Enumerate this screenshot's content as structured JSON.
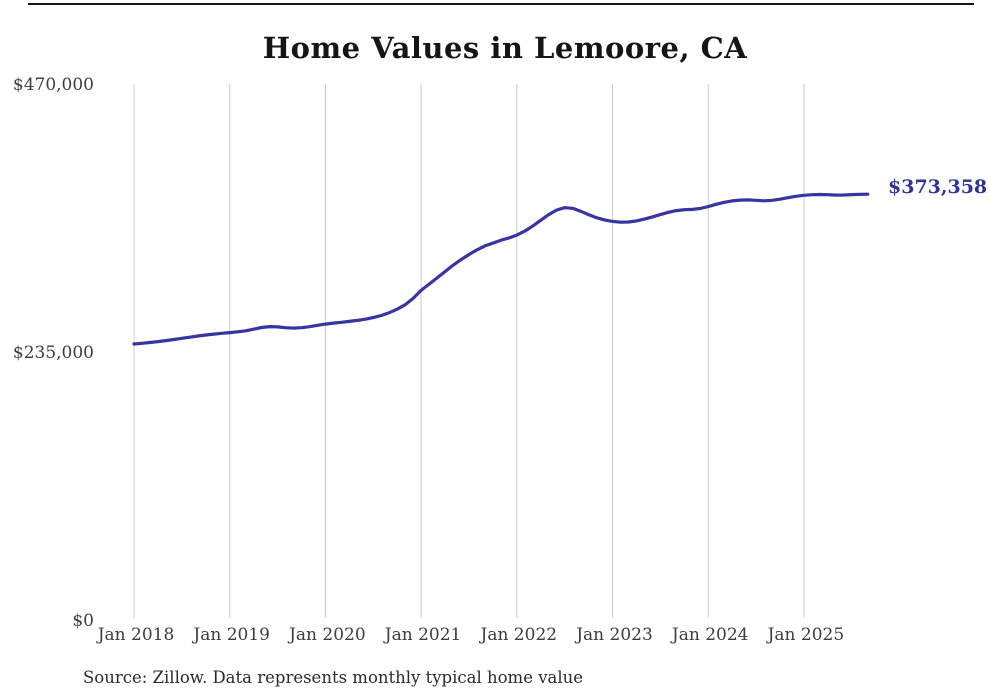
{
  "page": {
    "background": "#ffffff"
  },
  "chart_data": {
    "type": "line",
    "title": "Home Values in Lemoore, CA",
    "source_note": "Source: Zillow. Data represents monthly typical home value",
    "end_label": "$373,358",
    "x_tick_labels": [
      "Jan 2018",
      "Jan 2019",
      "Jan 2020",
      "Jan 2021",
      "Jan 2022",
      "Jan 2023",
      "Jan 2024",
      "Jan 2025"
    ],
    "y_ticks": [
      {
        "label": "$470,000",
        "value": 470000
      },
      {
        "label": "$235,000",
        "value": 235000
      },
      {
        "label": "$0",
        "value": 0
      }
    ],
    "ylim": [
      0,
      470000
    ],
    "grid": "vertical-only",
    "legend": "none",
    "series": [
      {
        "name": "Monthly typical home value",
        "x_start": "2018-01",
        "x_interval": "monthly",
        "x_end": "2025-09",
        "latest_value": 373358,
        "values": [
          242000,
          242600,
          243300,
          244100,
          245000,
          246000,
          247000,
          248000,
          249000,
          249900,
          250700,
          251400,
          252000,
          252700,
          253600,
          255000,
          256500,
          257300,
          257000,
          256300,
          256000,
          256300,
          257200,
          258400,
          259500,
          260300,
          261000,
          261800,
          262700,
          263800,
          265200,
          267000,
          269500,
          272500,
          276500,
          282000,
          289000,
          294500,
          300000,
          305500,
          311000,
          316000,
          320500,
          324500,
          328000,
          330500,
          333000,
          335000,
          337500,
          341000,
          345500,
          350500,
          355500,
          359500,
          361500,
          361000,
          358500,
          355500,
          352800,
          350800,
          349500,
          348800,
          349000,
          350000,
          351500,
          353500,
          355500,
          357500,
          359000,
          359800,
          360000,
          360800,
          362500,
          364500,
          366300,
          367500,
          368200,
          368400,
          368000,
          367600,
          368000,
          369000,
          370300,
          371500,
          372400,
          372900,
          373100,
          372900,
          372600,
          372700,
          373000,
          373200,
          373358
        ]
      }
    ],
    "colors": {
      "line": "#3734a3",
      "end_label": "#32309b",
      "gridline": "#cccccc",
      "title_text": "#151515",
      "axis_text": "#3d3d3d",
      "source_text": "#2b2b2b"
    }
  }
}
